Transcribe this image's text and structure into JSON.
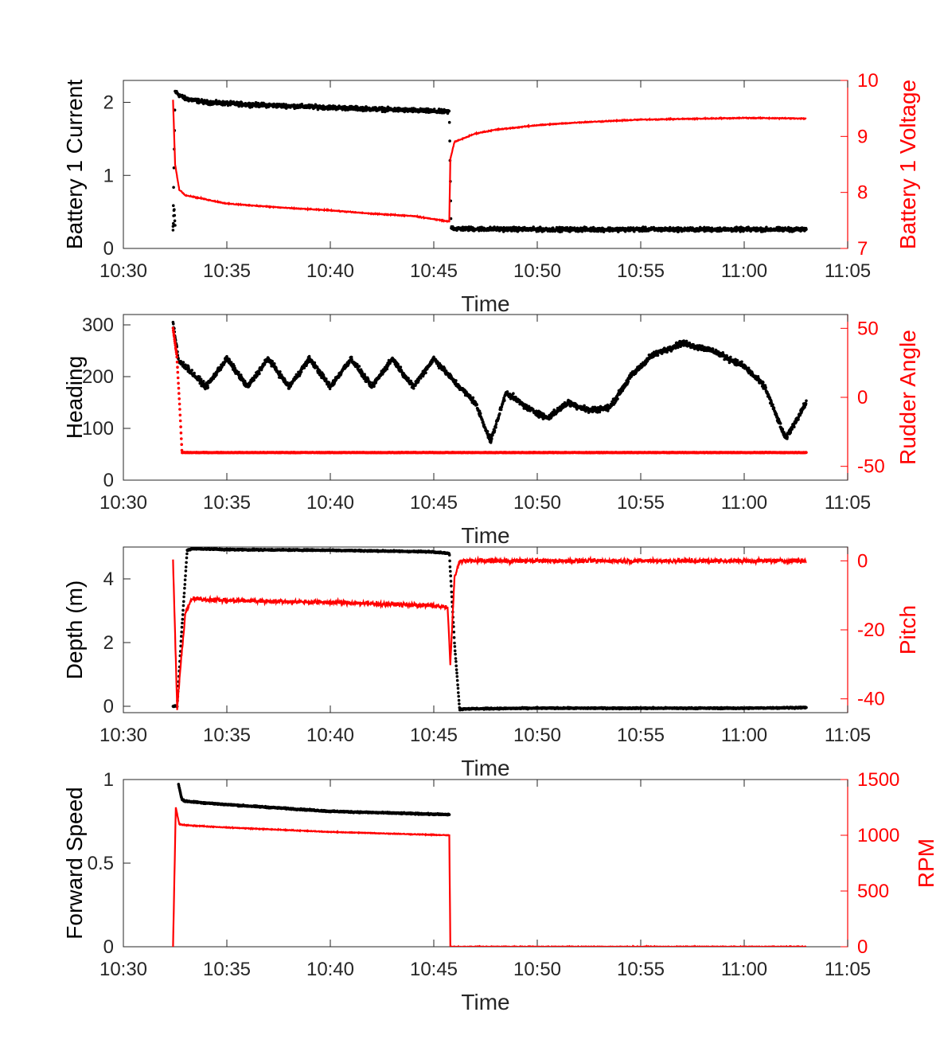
{
  "chart_data": [
    {
      "type": "scatter",
      "xlabel": "Time",
      "xlim": [
        "10:30",
        "11:05"
      ],
      "xticks": [
        "10:30",
        "10:35",
        "10:40",
        "10:45",
        "10:50",
        "10:55",
        "11:00",
        "11:05"
      ],
      "left_axis": {
        "label": "Battery 1 Current",
        "color": "#000000",
        "ylim": [
          0,
          2.3
        ],
        "ticks": [
          "0",
          "1",
          "2"
        ],
        "tick_values": [
          0,
          1,
          2
        ]
      },
      "right_axis": {
        "label": "Battery 1 Voltage",
        "color": "#ff0000",
        "ylim": [
          7,
          10
        ],
        "ticks": [
          "7",
          "8",
          "9",
          "10"
        ],
        "tick_values": [
          7,
          8,
          9,
          10
        ]
      },
      "series": [
        {
          "axis": "left",
          "style": "points",
          "color": "#000000",
          "noise": 0.04,
          "x": [
            "10:32:24",
            "10:32:30",
            "10:32:42",
            "10:33:00",
            "10:34:00",
            "10:36:00",
            "10:38:00",
            "10:40:00",
            "10:42:00",
            "10:44:00",
            "10:45:45",
            "10:45:50",
            "10:46:00",
            "10:50:00",
            "10:55:00",
            "11:00:00",
            "11:03:00"
          ],
          "y": [
            0.3,
            2.15,
            2.1,
            2.05,
            2.0,
            1.97,
            1.95,
            1.93,
            1.91,
            1.89,
            1.87,
            0.3,
            0.27,
            0.26,
            0.26,
            0.26,
            0.26
          ]
        },
        {
          "axis": "left",
          "style": "points",
          "color": "#000000",
          "noise": 0.02,
          "x": [
            "10:32:24",
            "10:32:27",
            "10:32:30"
          ],
          "y": [
            0.25,
            0.57,
            0.3
          ]
        },
        {
          "axis": "right",
          "style": "line",
          "color": "#ff0000",
          "noise": 0.012,
          "x": [
            "10:32:24",
            "10:32:30",
            "10:32:42",
            "10:33:00",
            "10:35:00",
            "10:38:00",
            "10:40:00",
            "10:42:00",
            "10:44:00",
            "10:45:45",
            "10:45:48",
            "10:46:00",
            "10:47:00",
            "10:48:00",
            "10:50:00",
            "10:52:00",
            "10:55:00",
            "11:00:00",
            "11:03:00"
          ],
          "y": [
            9.65,
            8.5,
            8.05,
            7.95,
            7.8,
            7.72,
            7.68,
            7.62,
            7.58,
            7.48,
            8.6,
            8.9,
            9.05,
            9.12,
            9.2,
            9.25,
            9.3,
            9.33,
            9.32
          ]
        }
      ]
    },
    {
      "type": "scatter",
      "xlabel": "Time",
      "xlim": [
        "10:30",
        "11:05"
      ],
      "xticks": [
        "10:30",
        "10:35",
        "10:40",
        "10:45",
        "10:50",
        "10:55",
        "11:00",
        "11:05"
      ],
      "left_axis": {
        "label": "Heading",
        "color": "#000000",
        "ylim": [
          0,
          320
        ],
        "ticks": [
          "0",
          "100",
          "200",
          "300"
        ],
        "tick_values": [
          0,
          100,
          200,
          300
        ]
      },
      "right_axis": {
        "label": "Rudder Angle",
        "color": "#ff0000",
        "ylim": [
          -60,
          60
        ],
        "ticks": [
          "-50",
          "0",
          "50"
        ],
        "tick_values": [
          -50,
          0,
          50
        ]
      },
      "series": [
        {
          "axis": "left",
          "style": "points",
          "color": "#000000",
          "noise": 8,
          "x": [
            "10:32:24",
            "10:32:40",
            "10:33:00",
            "10:34:00",
            "10:35:00",
            "10:36:00",
            "10:37:00",
            "10:38:00",
            "10:39:00",
            "10:40:00",
            "10:41:00",
            "10:42:00",
            "10:43:00",
            "10:44:00",
            "10:45:00",
            "10:46:00",
            "10:47:00",
            "10:47:45",
            "10:48:30",
            "10:49:30",
            "10:50:30",
            "10:51:30",
            "10:52:30",
            "10:53:30",
            "10:54:30",
            "10:55:30",
            "10:57:00",
            "10:58:30",
            "11:00:00",
            "11:01:00",
            "11:02:00",
            "11:03:00"
          ],
          "y": [
            305,
            230,
            220,
            180,
            235,
            180,
            235,
            180,
            235,
            180,
            235,
            180,
            235,
            180,
            235,
            190,
            150,
            75,
            170,
            140,
            120,
            150,
            135,
            140,
            200,
            240,
            265,
            250,
            220,
            180,
            80,
            150
          ]
        },
        {
          "axis": "right",
          "style": "points",
          "color": "#ff0000",
          "noise": 0.3,
          "x": [
            "10:32:24",
            "10:32:35",
            "10:32:44",
            "10:32:50",
            "10:33:00",
            "10:40:00",
            "10:50:00",
            "11:00:00",
            "11:03:00"
          ],
          "y": [
            50,
            30,
            -10,
            -40,
            -40,
            -40,
            -40,
            -40,
            -40
          ]
        }
      ]
    },
    {
      "type": "scatter",
      "xlabel": "Time",
      "xlim": [
        "10:30",
        "11:05"
      ],
      "xticks": [
        "10:30",
        "10:35",
        "10:40",
        "10:45",
        "10:50",
        "10:55",
        "11:00",
        "11:05"
      ],
      "left_axis": {
        "label": "Depth (m)",
        "color": "#000000",
        "ylim": [
          -0.2,
          5
        ],
        "ticks": [
          "0",
          "2",
          "4"
        ],
        "tick_values": [
          0,
          2,
          4
        ]
      },
      "right_axis": {
        "label": "Pitch",
        "color": "#ff0000",
        "ylim": [
          -44,
          4
        ],
        "ticks": [
          "-40",
          "-20",
          "0"
        ],
        "tick_values": [
          -40,
          -20,
          0
        ]
      },
      "series": [
        {
          "axis": "left",
          "style": "points",
          "color": "#000000",
          "noise": 0.03,
          "x": [
            "10:32:24",
            "10:32:36",
            "10:32:48",
            "10:33:05",
            "10:33:20",
            "10:35:00",
            "10:40:00",
            "10:45:00",
            "10:45:45",
            "10:46:00",
            "10:46:15",
            "10:46:30",
            "10:50:00",
            "10:55:00",
            "11:00:00",
            "11:03:00"
          ],
          "y": [
            0,
            0,
            2.2,
            4.9,
            4.95,
            4.92,
            4.9,
            4.85,
            4.8,
            2.0,
            -0.1,
            -0.08,
            -0.06,
            -0.06,
            -0.06,
            -0.04
          ]
        },
        {
          "axis": "right",
          "style": "line",
          "color": "#ff0000",
          "noise": 0.9,
          "x": [
            "10:32:24",
            "10:32:36",
            "10:32:48",
            "10:33:00",
            "10:33:20",
            "10:35:00",
            "10:40:00",
            "10:45:00",
            "10:45:40",
            "10:45:48",
            "10:46:00",
            "10:46:15",
            "10:50:00",
            "10:55:00",
            "11:00:00",
            "11:03:00"
          ],
          "y": [
            0,
            -43,
            -28,
            -15,
            -11,
            -11.5,
            -12,
            -13,
            -13.5,
            -30,
            -5,
            0,
            0,
            0,
            0,
            0
          ]
        }
      ]
    },
    {
      "type": "scatter",
      "xlabel": "Time",
      "xlim": [
        "10:30",
        "11:05"
      ],
      "xticks": [
        "10:30",
        "10:35",
        "10:40",
        "10:45",
        "10:50",
        "10:55",
        "11:00",
        "11:05"
      ],
      "left_axis": {
        "label": "Forward Speed",
        "color": "#000000",
        "ylim": [
          0,
          1
        ],
        "ticks": [
          "0",
          "0.5",
          "1"
        ],
        "tick_values": [
          0,
          0.5,
          1
        ]
      },
      "right_axis": {
        "label": "RPM",
        "color": "#ff0000",
        "ylim": [
          0,
          1500
        ],
        "ticks": [
          "0",
          "500",
          "1000",
          "1500"
        ],
        "tick_values": [
          0,
          500,
          1000,
          1500
        ]
      },
      "series": [
        {
          "axis": "left",
          "style": "points",
          "color": "#000000",
          "noise": 0.006,
          "x": [
            "10:32:40",
            "10:32:50",
            "10:33:00",
            "10:35:00",
            "10:40:00",
            "10:45:45"
          ],
          "y": [
            0.97,
            0.88,
            0.87,
            0.85,
            0.81,
            0.79
          ]
        },
        {
          "axis": "right",
          "style": "line",
          "color": "#ff0000",
          "noise": 5,
          "x": [
            "10:32:24",
            "10:32:32",
            "10:32:42",
            "10:33:00",
            "10:35:00",
            "10:40:00",
            "10:45:45",
            "10:45:48",
            "10:46:00",
            "11:03:00"
          ],
          "y": [
            0,
            1250,
            1100,
            1090,
            1070,
            1030,
            1000,
            0,
            0,
            0
          ]
        }
      ]
    }
  ]
}
